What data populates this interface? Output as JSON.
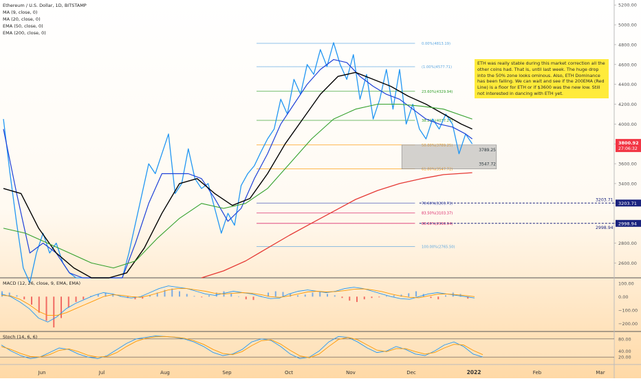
{
  "title": "Ethereum / U.S. Dollar, 1D, BITSTAMP",
  "indicators": [
    "MA (9, close, 0)",
    "MA (20, close, 0)",
    "EMA (50, close, 0)",
    "EMA (200, close, 0)"
  ],
  "note": "ETH was really stable during this market correction all the other coins had. That is, until last week. The huge drop into the 50% zone looks ominous. Also, ETH Dominance has been falling. We can wait and see if the 200EMA (Red Line) is a floor for ETH or if $3600 was the new low. Still not interested in dancing with ETH yet.",
  "macd_label": "MACD (12, 26, close, 9, EMA, EMA)",
  "stoch_label": "Stoch (14, 6, 6)",
  "price_badge": {
    "price": "3800.92",
    "countdown": "27:06:32",
    "color": "#f23645"
  },
  "level_badges": [
    {
      "text": "3203.71",
      "value": 3203.71
    },
    {
      "text": "2998.94",
      "value": 2998.94
    }
  ],
  "box_labels": [
    "3789.25",
    "3547.72"
  ],
  "colors": {
    "price": "#2196f3",
    "ma9": "#1e40d8",
    "ma20": "#000000",
    "ema50": "#33a02c",
    "ema200": "#e53935",
    "fib": "#5aa6e0",
    "level": "#1a237e"
  },
  "chart_data": {
    "type": "line",
    "x_axis": {
      "labels": [
        "Jun",
        "Jul",
        "Aug",
        "Sep",
        "Oct",
        "Nov",
        "Dec",
        "2022",
        "Feb",
        "Mar"
      ]
    },
    "y_axis": {
      "min": 2450,
      "max": 5250,
      "ticks": [
        5200,
        5000,
        4800,
        4600,
        4400,
        4200,
        4000,
        3800,
        3600,
        3400,
        3200,
        3000,
        2800,
        2600
      ]
    },
    "fib_levels": [
      {
        "label": "0.00%(4813.19)",
        "value": 4813.19,
        "color": "#5aa6e0"
      },
      {
        "label": "(1.00%(4577.71)",
        "value": 4577.71,
        "color": "#5aa6e0"
      },
      {
        "label": "23.60%(4329.94)",
        "value": 4329.94,
        "color": "#33a02c"
      },
      {
        "label": "38.20%(4037.27)",
        "value": 4037.27,
        "color": "#33a02c"
      },
      {
        "label": "50.00%(3789.25)",
        "value": 3789.25,
        "color": "#ff9800"
      },
      {
        "label": "61.80%(3547.72)",
        "value": 3547.72,
        "color": "#ff9800"
      },
      {
        "label": "78.60%(3203.71)",
        "value": 3203.71,
        "color": "#3f51b5"
      },
      {
        "label": "83.50%(3103.37)",
        "value": 3103.37,
        "color": "#d81b60"
      },
      {
        "label": "88.60%(2998.94)",
        "value": 2998.94,
        "color": "#d81b60"
      },
      {
        "label": "100.00%(2765.50)",
        "value": 2765.5,
        "color": "#5aa6e0"
      }
    ],
    "series": [
      {
        "name": "Ethereum / U.S. Dollar",
        "x": [
          0,
          3,
          6,
          9,
          12,
          15,
          18,
          21,
          24,
          27,
          30,
          33,
          36,
          39,
          42,
          45,
          48,
          51,
          54,
          57,
          60,
          63,
          66,
          69,
          72,
          75,
          78,
          81,
          84,
          87,
          90,
          93,
          96,
          99,
          102,
          105,
          108,
          111,
          114,
          117,
          120,
          123,
          126,
          129,
          132,
          135,
          138,
          141,
          144,
          147,
          150,
          153,
          156,
          159,
          162,
          165,
          168,
          171,
          174,
          177,
          180,
          183,
          186,
          189,
          192,
          195,
          198,
          201,
          204,
          207,
          210,
          213
        ],
        "values": [
          4050,
          3500,
          3000,
          2550,
          2400,
          2700,
          2900,
          2700,
          2800,
          2600,
          2500,
          2450,
          2450,
          2450,
          2450,
          2450,
          2450,
          2450,
          2450,
          2700,
          3000,
          3300,
          3600,
          3500,
          3700,
          3900,
          3300,
          3400,
          3750,
          3450,
          3350,
          3400,
          3150,
          2900,
          3100,
          2980,
          3380,
          3500,
          3580,
          3720,
          3850,
          3950,
          4250,
          4100,
          4450,
          4300,
          4600,
          4500,
          4750,
          4580,
          4820,
          4600,
          4450,
          4700,
          4250,
          4500,
          4050,
          4250,
          4550,
          4150,
          4550,
          4000,
          4200,
          3950,
          3850,
          4050,
          3950,
          4100,
          4000,
          3700,
          3900,
          3800
        ]
      },
      {
        "name": "MA (9, close, 0)",
        "x": [
          0,
          6,
          12,
          18,
          24,
          30,
          36,
          42,
          48,
          54,
          60,
          66,
          72,
          78,
          84,
          90,
          96,
          102,
          108,
          114,
          120,
          126,
          132,
          138,
          144,
          150,
          156,
          162,
          168,
          174,
          180,
          186,
          192,
          198,
          204,
          210,
          213
        ],
        "values": [
          3950,
          3300,
          2700,
          2800,
          2700,
          2500,
          2450,
          2450,
          2450,
          2450,
          2800,
          3200,
          3500,
          3500,
          3500,
          3450,
          3250,
          3020,
          3150,
          3450,
          3700,
          4000,
          4200,
          4400,
          4550,
          4650,
          4620,
          4480,
          4380,
          4300,
          4250,
          4150,
          4050,
          4000,
          3970,
          3900,
          3850
        ]
      },
      {
        "name": "MA (20, close, 0)",
        "x": [
          0,
          8,
          16,
          24,
          32,
          40,
          48,
          56,
          64,
          72,
          80,
          88,
          96,
          104,
          112,
          120,
          128,
          136,
          144,
          152,
          160,
          168,
          176,
          184,
          192,
          200,
          208,
          213
        ],
        "values": [
          3350,
          3300,
          2950,
          2700,
          2550,
          2450,
          2450,
          2500,
          2750,
          3100,
          3400,
          3450,
          3300,
          3180,
          3250,
          3500,
          3800,
          4050,
          4300,
          4480,
          4520,
          4450,
          4380,
          4280,
          4200,
          4100,
          4000,
          3950
        ]
      },
      {
        "name": "EMA (50, close, 0)",
        "x": [
          0,
          10,
          20,
          30,
          40,
          50,
          60,
          70,
          80,
          90,
          100,
          110,
          120,
          130,
          140,
          150,
          160,
          170,
          180,
          190,
          200,
          213
        ],
        "values": [
          2950,
          2900,
          2800,
          2700,
          2600,
          2550,
          2620,
          2850,
          3050,
          3200,
          3150,
          3200,
          3350,
          3600,
          3850,
          4050,
          4150,
          4200,
          4200,
          4180,
          4150,
          4050
        ]
      },
      {
        "name": "EMA (200, close, 0)",
        "x": [
          90,
          100,
          110,
          120,
          130,
          140,
          150,
          160,
          170,
          180,
          190,
          200,
          213
        ],
        "values": [
          2450,
          2520,
          2620,
          2750,
          2880,
          3000,
          3120,
          3240,
          3330,
          3400,
          3450,
          3490,
          3510
        ]
      }
    ],
    "macd": {
      "y_ticks": [
        "100.00",
        "0.00",
        "−100.00",
        "−200.00"
      ],
      "range": [
        -250,
        130
      ],
      "histogram": [
        40,
        30,
        10,
        -20,
        -60,
        -120,
        -180,
        -230,
        -160,
        -80,
        -40,
        -20,
        5,
        20,
        30,
        20,
        5,
        -10,
        -20,
        -15,
        10,
        30,
        50,
        60,
        40,
        20,
        5,
        -5,
        10,
        30,
        40,
        25,
        0,
        -20,
        -25,
        5,
        30,
        40,
        35,
        20,
        10,
        15,
        30,
        40,
        20,
        10,
        -10,
        -30,
        -40,
        -20,
        -10,
        -5,
        5,
        10,
        15,
        25,
        40,
        20,
        -10,
        -20,
        10,
        30,
        20,
        -15
      ],
      "macd_line": [
        20,
        0,
        -40,
        -90,
        -160,
        -190,
        -150,
        -90,
        -50,
        -20,
        10,
        30,
        20,
        0,
        -10,
        0,
        30,
        60,
        80,
        70,
        60,
        40,
        20,
        10,
        25,
        40,
        30,
        20,
        0,
        -15,
        -10,
        20,
        40,
        50,
        40,
        30,
        40,
        60,
        70,
        60,
        40,
        20,
        0,
        -15,
        -20,
        0,
        20,
        30,
        20,
        10,
        0,
        -10
      ],
      "signal_line": [
        10,
        5,
        -20,
        -60,
        -110,
        -140,
        -140,
        -120,
        -90,
        -60,
        -30,
        0,
        15,
        10,
        0,
        -5,
        10,
        30,
        50,
        60,
        60,
        50,
        40,
        25,
        20,
        25,
        30,
        25,
        15,
        0,
        -5,
        5,
        20,
        35,
        40,
        35,
        38,
        45,
        55,
        58,
        50,
        38,
        20,
        5,
        -5,
        -8,
        5,
        18,
        20,
        15,
        8,
        0
      ]
    },
    "stoch": {
      "y_ticks": [
        "80.00",
        "40.00",
        "20.00"
      ],
      "range": [
        0,
        100
      ],
      "bands": [
        80,
        20
      ],
      "k": [
        60,
        40,
        25,
        15,
        20,
        35,
        50,
        45,
        30,
        20,
        15,
        25,
        45,
        65,
        80,
        85,
        90,
        88,
        85,
        80,
        70,
        55,
        35,
        25,
        30,
        45,
        70,
        80,
        75,
        55,
        30,
        15,
        20,
        40,
        70,
        88,
        85,
        70,
        50,
        35,
        40,
        55,
        45,
        30,
        25,
        40,
        60,
        70,
        55,
        30,
        20
      ],
      "d": [
        55,
        45,
        32,
        22,
        20,
        28,
        42,
        47,
        38,
        26,
        20,
        22,
        35,
        55,
        72,
        82,
        87,
        88,
        86,
        82,
        74,
        62,
        45,
        32,
        28,
        38,
        58,
        74,
        77,
        63,
        42,
        24,
        18,
        30,
        55,
        78,
        85,
        77,
        60,
        43,
        38,
        48,
        48,
        38,
        30,
        35,
        50,
        62,
        60,
        42,
        28
      ]
    }
  }
}
